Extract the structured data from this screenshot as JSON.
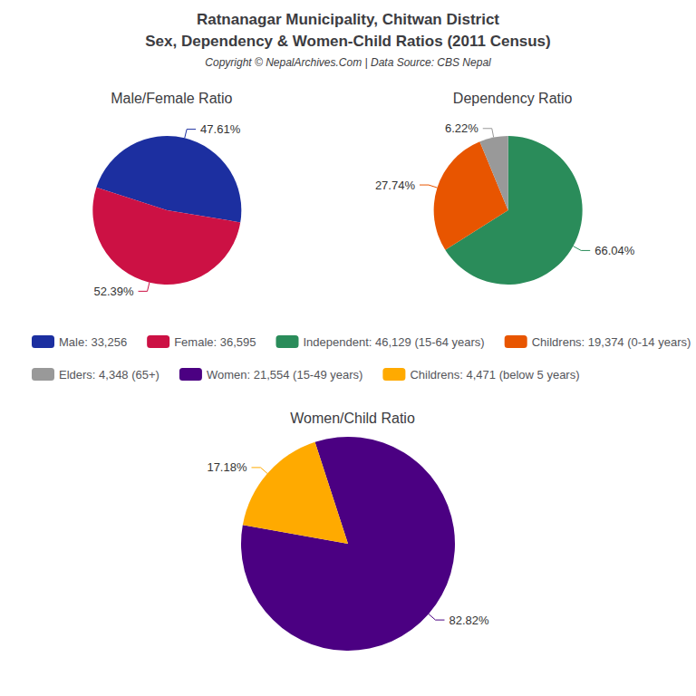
{
  "title": "Ratnanagar Municipality, Chitwan District",
  "subtitle": "Sex, Dependency & Women-Child Ratios (2011 Census)",
  "annotations": [
    "Copyright © NepalArchives.Com | Data Source: CBS Nepal"
  ],
  "chart_data": [
    {
      "type": "pie",
      "title": "Male/Female Ratio",
      "categories": [
        "Male: 33,256",
        "Female: 36,595"
      ],
      "values": [
        47.61,
        52.39
      ],
      "value_labels": [
        "47.61%",
        "52.39%"
      ],
      "colors": [
        "#1c2fa0",
        "#cc1144"
      ],
      "data_labels": true,
      "legend": "center"
    },
    {
      "type": "pie",
      "title": "Dependency Ratio",
      "categories": [
        "Independent: 46,129 (15-64 years)",
        "Childrens: 19,374 (0-14 years)",
        "Elders: 4,348 (65+)"
      ],
      "values": [
        66.04,
        27.74,
        6.22
      ],
      "value_labels": [
        "66.04%",
        "27.74%",
        "6.22%"
      ],
      "colors": [
        "#2a8c5a",
        "#e85500",
        "#999999"
      ],
      "data_labels": true,
      "legend": "center"
    },
    {
      "type": "pie",
      "title": "Women/Child Ratio",
      "categories": [
        "Women: 21,554 (15-49 years)",
        "Childrens: 4,471 (below 5 years)"
      ],
      "values": [
        82.82,
        17.18
      ],
      "value_labels": [
        "82.82%",
        "17.18%"
      ],
      "colors": [
        "#4b0082",
        "#ffaa00"
      ],
      "data_labels": true,
      "legend": "center"
    }
  ]
}
